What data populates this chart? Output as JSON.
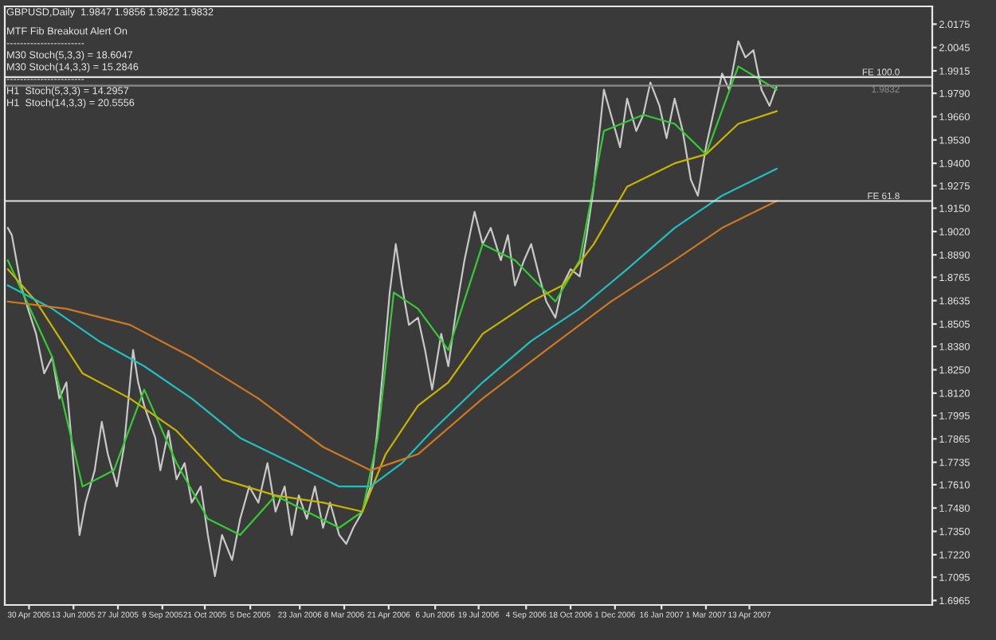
{
  "chart_data": {
    "type": "line",
    "title": "GBPUSD,Daily  1.9847 1.9856 1.9822 1.9832",
    "annotations": [
      "MTF Fib Breakout Alert On",
      "-----------------------",
      "M30 Stoch(5,3,3) = 18.6047",
      "M30 Stoch(14,3,3) = 15.2846",
      "-----------------------",
      "H1  Stoch(5,3,3) = 14.2957",
      "H1  Stoch(14,3,3) = 20.5556"
    ],
    "series": [
      {
        "color": "#c8c8c8",
        "x": [
          "2005-04-09",
          "2005-04-13",
          "2005-04-22",
          "2005-04-29",
          "2005-05-07",
          "2005-05-15",
          "2005-05-23",
          "2005-05-30",
          "2005-06-06",
          "2005-06-15",
          "2005-06-19",
          "2005-06-25",
          "2005-07-04",
          "2005-07-11",
          "2005-07-17",
          "2005-07-26",
          "2005-08-02",
          "2005-08-11",
          "2005-08-16",
          "2005-08-22",
          "2005-09-02",
          "2005-09-07",
          "2005-09-15",
          "2005-09-23",
          "2005-10-01",
          "2005-10-08",
          "2005-10-17",
          "2005-10-24",
          "2005-10-31",
          "2005-11-07",
          "2005-11-17",
          "2005-11-25",
          "2005-12-04",
          "2005-12-13",
          "2005-12-22",
          "2005-12-30",
          "2006-01-08",
          "2006-01-15",
          "2006-01-22",
          "2006-01-30",
          "2006-02-07",
          "2006-02-15",
          "2006-02-22",
          "2006-03-03",
          "2006-03-10",
          "2006-03-17",
          "2006-03-26",
          "2006-04-03",
          "2006-04-09",
          "2006-04-15",
          "2006-04-22",
          "2006-04-28",
          "2006-05-04",
          "2006-05-11",
          "2006-05-20",
          "2006-05-27",
          "2006-06-03",
          "2006-06-12",
          "2006-06-19",
          "2006-06-27",
          "2006-07-05",
          "2006-07-15",
          "2006-07-23",
          "2006-07-31",
          "2006-08-10",
          "2006-08-17",
          "2006-08-24",
          "2006-09-02",
          "2006-09-09",
          "2006-09-17",
          "2006-09-24",
          "2006-10-03",
          "2006-10-10",
          "2006-10-18",
          "2006-10-27",
          "2006-11-03",
          "2006-11-10",
          "2006-11-20",
          "2006-11-27",
          "2006-12-06",
          "2006-12-13",
          "2006-12-22",
          "2006-12-29",
          "2007-01-05",
          "2007-01-14",
          "2007-01-21",
          "2007-01-29",
          "2007-02-06",
          "2007-02-14",
          "2007-02-21",
          "2007-03-01",
          "2007-03-10",
          "2007-03-17",
          "2007-03-24",
          "2007-04-02",
          "2007-04-09",
          "2007-04-17",
          "2007-04-25",
          "2007-05-03",
          "2007-05-10"
        ],
        "values": [
          1.904,
          1.9,
          1.872,
          1.859,
          1.845,
          1.823,
          1.832,
          1.809,
          1.818,
          1.76,
          1.733,
          1.751,
          1.769,
          1.796,
          1.778,
          1.76,
          1.782,
          1.836,
          1.818,
          1.805,
          1.787,
          1.769,
          1.791,
          1.764,
          1.773,
          1.751,
          1.76,
          1.733,
          1.71,
          1.733,
          1.719,
          1.742,
          1.76,
          1.751,
          1.773,
          1.746,
          1.76,
          1.733,
          1.755,
          1.742,
          1.76,
          1.737,
          1.751,
          1.733,
          1.728,
          1.737,
          1.746,
          1.76,
          1.787,
          1.823,
          1.868,
          1.895,
          1.872,
          1.85,
          1.854,
          1.836,
          1.814,
          1.845,
          1.827,
          1.859,
          1.886,
          1.913,
          1.895,
          1.904,
          1.886,
          1.9,
          1.872,
          1.886,
          1.895,
          1.877,
          1.863,
          1.854,
          1.872,
          1.881,
          1.877,
          1.9,
          1.927,
          1.981,
          1.967,
          1.949,
          1.976,
          1.958,
          1.967,
          1.985,
          1.972,
          1.954,
          1.976,
          1.958,
          1.931,
          1.922,
          1.949,
          1.972,
          1.99,
          1.981,
          2.008,
          1.999,
          2.003,
          1.981,
          1.972,
          1.983
        ]
      },
      {
        "color": "#33cc33",
        "x": [
          "2005-04-09",
          "2005-05-23",
          "2005-06-22",
          "2005-07-23",
          "2005-08-22",
          "2005-09-23",
          "2005-10-24",
          "2005-11-25",
          "2005-12-30",
          "2006-01-30",
          "2006-03-03",
          "2006-03-26",
          "2006-04-10",
          "2006-04-26",
          "2006-05-20",
          "2006-06-19",
          "2006-07-23",
          "2006-08-24",
          "2006-10-03",
          "2006-10-27",
          "2006-11-20",
          "2006-12-29",
          "2007-01-29",
          "2007-03-01",
          "2007-04-02",
          "2007-05-10"
        ],
        "values": [
          1.886,
          1.832,
          1.76,
          1.769,
          1.814,
          1.773,
          1.742,
          1.733,
          1.755,
          1.746,
          1.737,
          1.746,
          1.787,
          1.868,
          1.859,
          1.836,
          1.895,
          1.886,
          1.863,
          1.886,
          1.958,
          1.967,
          1.962,
          1.945,
          1.994,
          1.981
        ]
      },
      {
        "color": "#c8b400",
        "x": [
          "2005-04-09",
          "2005-05-07",
          "2005-06-22",
          "2005-08-08",
          "2005-09-23",
          "2005-11-07",
          "2005-12-30",
          "2006-02-15",
          "2006-03-26",
          "2006-04-18",
          "2006-05-20",
          "2006-06-19",
          "2006-07-23",
          "2006-09-09",
          "2006-10-10",
          "2006-11-10",
          "2006-12-13",
          "2007-01-29",
          "2007-03-01",
          "2007-04-02",
          "2007-05-10"
        ],
        "values": [
          1.881,
          1.863,
          1.823,
          1.809,
          1.791,
          1.764,
          1.755,
          1.751,
          1.746,
          1.778,
          1.805,
          1.818,
          1.845,
          1.863,
          1.872,
          1.895,
          1.927,
          1.94,
          1.945,
          1.962,
          1.969
        ]
      },
      {
        "color": "#20c0c0",
        "x": [
          "2005-04-09",
          "2005-05-23",
          "2005-07-08",
          "2005-08-22",
          "2005-10-08",
          "2005-11-25",
          "2006-01-15",
          "2006-03-03",
          "2006-04-03",
          "2006-05-04",
          "2006-06-03",
          "2006-07-23",
          "2006-09-09",
          "2006-10-27",
          "2006-12-13",
          "2007-01-29",
          "2007-03-17",
          "2007-05-10"
        ],
        "values": [
          1.872,
          1.859,
          1.841,
          1.827,
          1.809,
          1.787,
          1.773,
          1.76,
          1.76,
          1.773,
          1.791,
          1.818,
          1.841,
          1.859,
          1.881,
          1.904,
          1.922,
          1.937
        ]
      },
      {
        "color": "#d07820",
        "x": [
          "2005-04-09",
          "2005-06-06",
          "2005-08-08",
          "2005-10-08",
          "2005-12-13",
          "2006-02-15",
          "2006-04-03",
          "2006-05-20",
          "2006-07-23",
          "2006-09-24",
          "2006-11-27",
          "2007-01-29",
          "2007-03-17",
          "2007-05-10"
        ],
        "values": [
          1.863,
          1.859,
          1.85,
          1.832,
          1.809,
          1.782,
          1.769,
          1.778,
          1.809,
          1.836,
          1.863,
          1.886,
          1.904,
          1.919
        ]
      }
    ],
    "xlim": [
      "2005-04-06",
      "2007-10-11"
    ],
    "xticks": [
      {
        "value": "2005-04-30",
        "label": "30 Apr 2005"
      },
      {
        "value": "2005-06-13",
        "label": "13 Jun 2005"
      },
      {
        "value": "2005-07-27",
        "label": "27 Jul 2005"
      },
      {
        "value": "2005-09-09",
        "label": "9 Sep 2005"
      },
      {
        "value": "2005-10-21",
        "label": "21 Oct 2005"
      },
      {
        "value": "2005-12-05",
        "label": "5 Dec 2005"
      },
      {
        "value": "2006-01-23",
        "label": "23 Jan 2006"
      },
      {
        "value": "2006-03-08",
        "label": "8 Mar 2006"
      },
      {
        "value": "2006-04-21",
        "label": "21 Apr 2006"
      },
      {
        "value": "2006-06-06",
        "label": "6 Jun 2006"
      },
      {
        "value": "2006-07-19",
        "label": "19 Jul 2006"
      },
      {
        "value": "2006-09-04",
        "label": "4 Sep 2006"
      },
      {
        "value": "2006-10-18",
        "label": "18 Oct 2006"
      },
      {
        "value": "2006-12-01",
        "label": "1 Dec 2006"
      },
      {
        "value": "2007-01-16",
        "label": "16 Jan 2007"
      },
      {
        "value": "2007-03-01",
        "label": "1 Mar 2007"
      },
      {
        "value": "2007-04-13",
        "label": "13 Apr 2007"
      }
    ],
    "ylim": [
      1.694,
      2.0274
    ],
    "yticks": [
      {
        "value": 2.0175,
        "label": "2.0175"
      },
      {
        "value": 2.0045,
        "label": "2.0045"
      },
      {
        "value": 1.9915,
        "label": "1.9915"
      },
      {
        "value": 1.979,
        "label": "1.9790"
      },
      {
        "value": 1.966,
        "label": "1.9660"
      },
      {
        "value": 1.953,
        "label": "1.9530"
      },
      {
        "value": 1.94,
        "label": "1.9400"
      },
      {
        "value": 1.9275,
        "label": "1.9275"
      },
      {
        "value": 1.915,
        "label": "1.9150"
      },
      {
        "value": 1.902,
        "label": "1.9020"
      },
      {
        "value": 1.889,
        "label": "1.8890"
      },
      {
        "value": 1.8765,
        "label": "1.8765"
      },
      {
        "value": 1.8635,
        "label": "1.8635"
      },
      {
        "value": 1.8505,
        "label": "1.8505"
      },
      {
        "value": 1.838,
        "label": "1.8380"
      },
      {
        "value": 1.825,
        "label": "1.8250"
      },
      {
        "value": 1.812,
        "label": "1.8120"
      },
      {
        "value": 1.7995,
        "label": "1.7995"
      },
      {
        "value": 1.7865,
        "label": "1.7865"
      },
      {
        "value": 1.7735,
        "label": "1.7735"
      },
      {
        "value": 1.761,
        "label": "1.7610"
      },
      {
        "value": 1.748,
        "label": "1.7480"
      },
      {
        "value": 1.735,
        "label": "1.7350"
      },
      {
        "value": 1.722,
        "label": "1.7220"
      },
      {
        "value": 1.7095,
        "label": "1.7095"
      },
      {
        "value": 1.6965,
        "label": "1.6965"
      }
    ],
    "ref_lines": [
      {
        "axis": "y",
        "value": 1.988,
        "label": "FE 100.0",
        "color": "#e0e0e0"
      },
      {
        "axis": "y",
        "value": 1.919,
        "label": "FE 61.8",
        "color": "#e0e0e0"
      },
      {
        "axis": "y",
        "value": 1.9832,
        "label": "1.9832",
        "color": "#8c8c8c"
      }
    ],
    "grid": false,
    "legend": false,
    "marker": "none",
    "line_style": "solid"
  }
}
